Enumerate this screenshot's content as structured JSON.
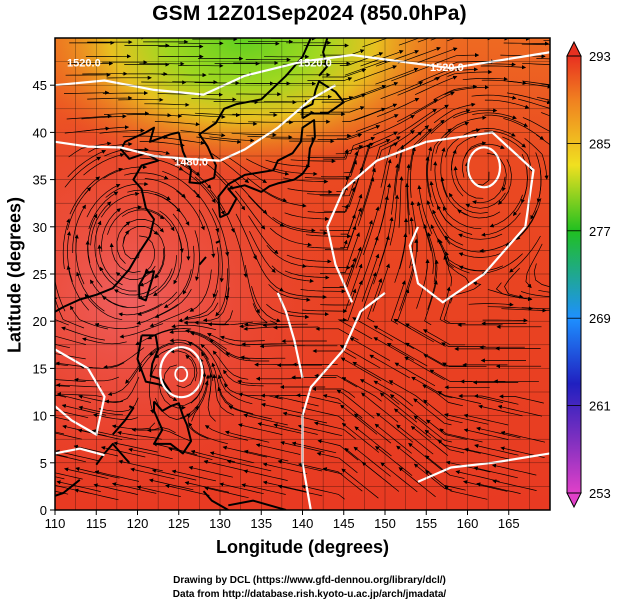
{
  "title": "GSM 12Z01Sep2024 (850.0hPa)",
  "x_axis": {
    "label": "Longitude (degrees)",
    "min": 110,
    "max": 170,
    "ticks": [
      110,
      115,
      120,
      125,
      130,
      135,
      140,
      145,
      150,
      155,
      160,
      165
    ]
  },
  "y_axis": {
    "label": "Latitude  (degrees)",
    "min": 0,
    "max": 50,
    "ticks": [
      0,
      5,
      10,
      15,
      20,
      25,
      30,
      35,
      40,
      45
    ]
  },
  "colorbar": {
    "ticks": [
      253,
      261,
      269,
      277,
      285,
      293
    ],
    "min": 253,
    "max": 293,
    "colors": [
      "#e040c8",
      "#2020c0",
      "#1e90ff",
      "#20c020",
      "#f0e020",
      "#f08020",
      "#e83020"
    ]
  },
  "contour_labels": [
    {
      "text": "1520.0",
      "lon": 157.5,
      "lat": 46.5
    },
    {
      "text": "1480.0",
      "lon": 126.5,
      "lat": 36.5
    },
    {
      "text": "1520.0",
      "lon": 113.5,
      "lat": 47.0
    },
    {
      "text": "1520.0",
      "lon": 141.5,
      "lat": 47.0
    }
  ],
  "credits": {
    "line1": "Drawing by DCL (https://www.gfd-dennou.org/library/dcl/)",
    "line2": "Data from http://database.rish.kyoto-u.ac.jp/arch/jmadata/"
  }
}
